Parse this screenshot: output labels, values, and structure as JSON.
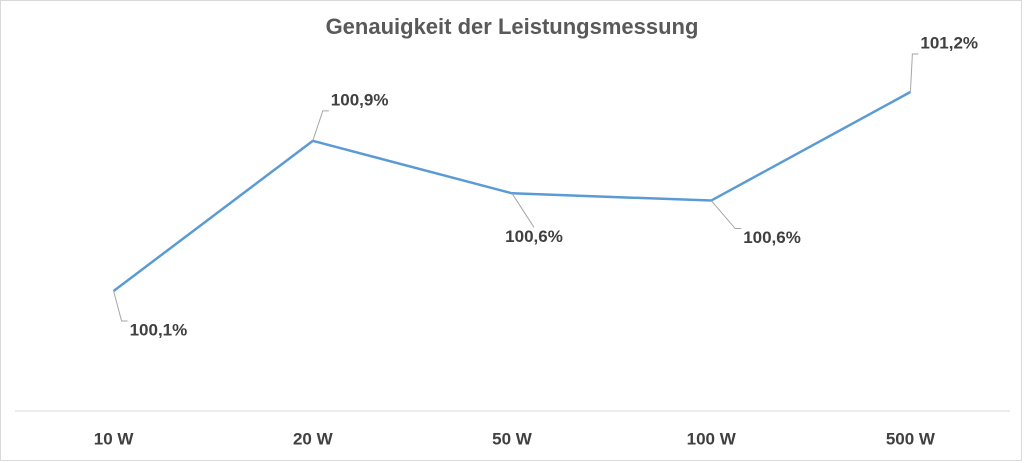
{
  "chart_data": {
    "type": "line",
    "title": "Genauigkeit der Leistungsmessung",
    "categories": [
      "10 W",
      "20 W",
      "50 W",
      "100 W",
      "500 W"
    ],
    "values": [
      100.1,
      100.93,
      100.64,
      100.6,
      101.2
    ],
    "value_labels": [
      "100,1%",
      "100,9%",
      "100,6%",
      "100,6%",
      "101,2%"
    ],
    "color": "#5b9bd5"
  }
}
